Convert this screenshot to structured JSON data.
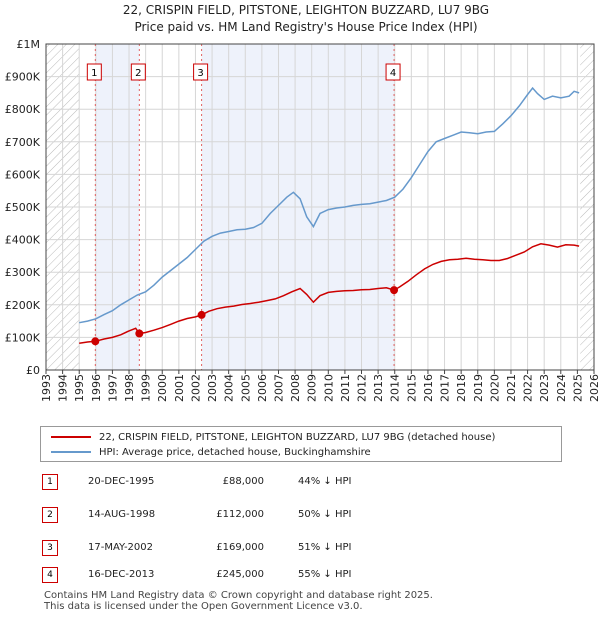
{
  "chart_data": {
    "type": "line",
    "title": "22, CRISPIN FIELD, PITSTONE, LEIGHTON BUZZARD, LU7 9BG",
    "subtitle": "Price paid vs. HM Land Registry's House Price Index (HPI)",
    "xlabel": "",
    "ylabel": "",
    "xlim": [
      1993,
      2026
    ],
    "ylim": [
      0,
      1000000
    ],
    "ytick_values": [
      0,
      100000,
      200000,
      300000,
      400000,
      500000,
      600000,
      700000,
      800000,
      900000,
      1000000
    ],
    "ytick_labels": [
      "£0",
      "£100K",
      "£200K",
      "£300K",
      "£400K",
      "£500K",
      "£600K",
      "£700K",
      "£800K",
      "£900K",
      "£1M"
    ],
    "xtick_labels": [
      "1993",
      "1994",
      "1995",
      "1996",
      "1997",
      "1998",
      "1999",
      "2000",
      "2001",
      "2002",
      "2003",
      "2004",
      "2005",
      "2006",
      "2007",
      "2008",
      "2009",
      "2010",
      "2011",
      "2012",
      "2013",
      "2014",
      "2015",
      "2016",
      "2017",
      "2018",
      "2019",
      "2020",
      "2021",
      "2022",
      "2023",
      "2024",
      "2025",
      "2026"
    ],
    "grid": true,
    "hatched_ranges": [
      [
        1993,
        1995.0
      ],
      [
        2025.17,
        2026
      ]
    ],
    "series": [
      {
        "name": "22, CRISPIN FIELD, PITSTONE, LEIGHTON BUZZARD, LU7 9BG (detached house)",
        "color": "#cc0000",
        "x": [
          1995.0,
          1995.5,
          1995.97,
          1996.5,
          1997.0,
          1997.5,
          1998.0,
          1998.4,
          1998.62,
          1999.0,
          1999.5,
          2000.0,
          2000.5,
          2001.0,
          2001.5,
          2002.0,
          2002.37,
          2002.8,
          2003.3,
          2003.8,
          2004.3,
          2004.8,
          2005.3,
          2005.8,
          2006.3,
          2006.8,
          2007.3,
          2007.8,
          2008.3,
          2008.7,
          2009.1,
          2009.5,
          2010.0,
          2010.5,
          2011.0,
          2011.5,
          2012.0,
          2012.5,
          2013.0,
          2013.5,
          2013.96,
          2014.3,
          2014.8,
          2015.3,
          2015.8,
          2016.3,
          2016.8,
          2017.3,
          2017.8,
          2018.3,
          2018.8,
          2019.3,
          2019.8,
          2020.3,
          2020.8,
          2021.3,
          2021.8,
          2022.3,
          2022.8,
          2023.3,
          2023.8,
          2024.3,
          2024.8,
          2025.1
        ],
        "y": [
          82000,
          86000,
          88000,
          95000,
          100000,
          108000,
          120000,
          128000,
          112000,
          115000,
          122000,
          130000,
          140000,
          150000,
          158000,
          163000,
          169000,
          180000,
          188000,
          193000,
          196000,
          201000,
          204000,
          208000,
          213000,
          218000,
          228000,
          240000,
          250000,
          232000,
          208000,
          228000,
          238000,
          241000,
          243000,
          244000,
          246000,
          247000,
          250000,
          252000,
          245000,
          255000,
          272000,
          292000,
          310000,
          324000,
          333000,
          338000,
          340000,
          343000,
          340000,
          338000,
          336000,
          336000,
          342000,
          352000,
          362000,
          378000,
          387000,
          383000,
          377000,
          384000,
          383000,
          380000
        ]
      },
      {
        "name": "HPI: Average price, detached house, Buckinghamshire",
        "color": "#6699cc",
        "x": [
          1995.0,
          1995.5,
          1996.0,
          1996.5,
          1997.0,
          1997.5,
          1998.0,
          1998.5,
          1999.0,
          1999.5,
          2000.0,
          2000.5,
          2001.0,
          2001.5,
          2002.0,
          2002.5,
          2003.0,
          2003.5,
          2004.0,
          2004.5,
          2005.0,
          2005.5,
          2006.0,
          2006.5,
          2007.0,
          2007.5,
          2007.9,
          2008.3,
          2008.7,
          2009.1,
          2009.5,
          2010.0,
          2010.5,
          2011.0,
          2011.5,
          2012.0,
          2012.5,
          2013.0,
          2013.5,
          2014.0,
          2014.5,
          2015.0,
          2015.5,
          2016.0,
          2016.5,
          2017.0,
          2017.5,
          2018.0,
          2018.5,
          2019.0,
          2019.5,
          2020.0,
          2020.5,
          2021.0,
          2021.5,
          2022.0,
          2022.3,
          2022.6,
          2023.0,
          2023.5,
          2024.0,
          2024.5,
          2024.8,
          2025.1
        ],
        "y": [
          145000,
          150000,
          157000,
          170000,
          182000,
          200000,
          215000,
          230000,
          240000,
          260000,
          285000,
          305000,
          325000,
          345000,
          370000,
          395000,
          410000,
          420000,
          425000,
          430000,
          432000,
          437000,
          450000,
          480000,
          505000,
          530000,
          545000,
          525000,
          470000,
          440000,
          480000,
          492000,
          497000,
          500000,
          505000,
          508000,
          510000,
          515000,
          520000,
          530000,
          555000,
          590000,
          630000,
          670000,
          700000,
          710000,
          720000,
          730000,
          728000,
          725000,
          730000,
          732000,
          755000,
          780000,
          810000,
          845000,
          865000,
          848000,
          830000,
          840000,
          835000,
          840000,
          855000,
          850000
        ]
      }
    ],
    "sales": [
      {
        "n": "1",
        "year": 1995.97,
        "price": 88000
      },
      {
        "n": "2",
        "year": 1998.62,
        "price": 112000
      },
      {
        "n": "3",
        "year": 2002.37,
        "price": 169000
      },
      {
        "n": "4",
        "year": 2013.96,
        "price": 245000
      }
    ]
  },
  "legend": {
    "property": "22, CRISPIN FIELD, PITSTONE, LEIGHTON BUZZARD, LU7 9BG (detached house)",
    "hpi": "HPI: Average price, detached house, Buckinghamshire"
  },
  "table": [
    {
      "n": "1",
      "date": "20-DEC-1995",
      "price": "£88,000",
      "hpi": "44% ↓ HPI"
    },
    {
      "n": "2",
      "date": "14-AUG-1998",
      "price": "£112,000",
      "hpi": "50% ↓ HPI"
    },
    {
      "n": "3",
      "date": "17-MAY-2002",
      "price": "£169,000",
      "hpi": "51% ↓ HPI"
    },
    {
      "n": "4",
      "date": "16-DEC-2013",
      "price": "£245,000",
      "hpi": "55% ↓ HPI"
    }
  ],
  "colors": {
    "property": "#cc0000",
    "hpi": "#6699cc",
    "sale_band": "#eef2fb"
  },
  "footer": {
    "line1": "Contains HM Land Registry data © Crown copyright and database right 2025.",
    "line2": "This data is licensed under the Open Government Licence v3.0."
  }
}
